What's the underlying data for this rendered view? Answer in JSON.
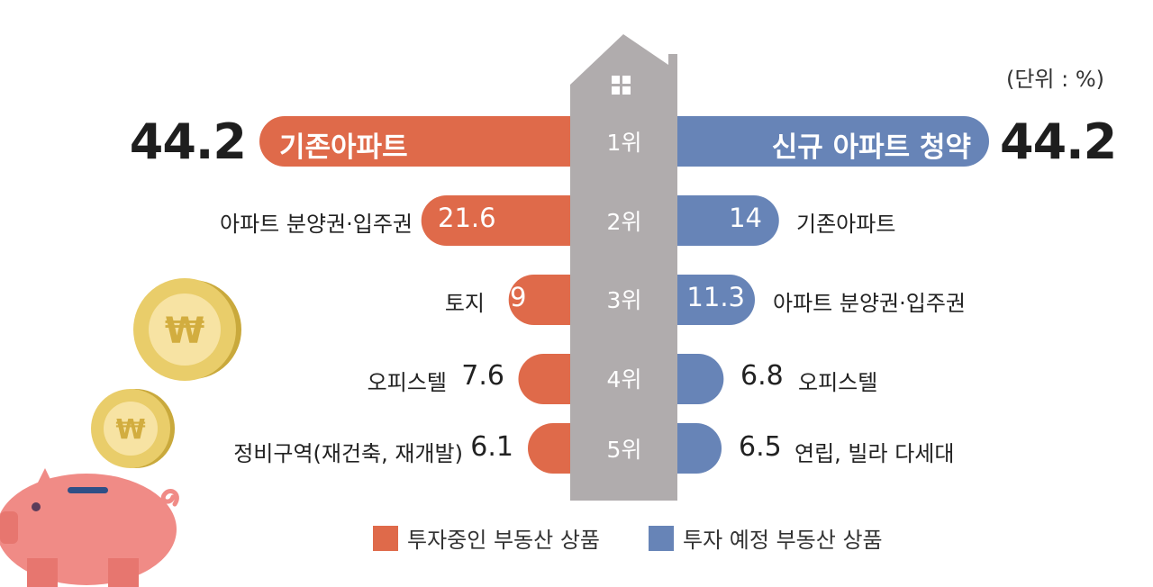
{
  "unit_label": "(단위 : %)",
  "colors": {
    "current": "#df6a4a",
    "planned": "#6784b7",
    "house": "#b0acad",
    "coin": "#e9cd6a",
    "pig": "#f08b86"
  },
  "chart_data": {
    "type": "bar",
    "orientation": "horizontal-butterfly",
    "categories": [
      "1위",
      "2위",
      "3위",
      "4위",
      "5위"
    ],
    "series": [
      {
        "name": "투자중인 부동산 상품",
        "items": [
          {
            "label": "기존아파트",
            "value": 44.2,
            "value_text": "44.2"
          },
          {
            "label": "아파트 분양권·입주권",
            "value": 21.6,
            "value_text": "21.6"
          },
          {
            "label": "토지",
            "value": 9,
            "value_text": "9"
          },
          {
            "label": "오피스텔",
            "value": 7.6,
            "value_text": "7.6"
          },
          {
            "label": "정비구역(재건축, 재개발)",
            "value": 6.1,
            "value_text": "6.1"
          }
        ]
      },
      {
        "name": "투자 예정 부동산 상품",
        "items": [
          {
            "label": "신규 아파트 청약",
            "value": 44.2,
            "value_text": "44.2"
          },
          {
            "label": "기존아파트",
            "value": 14,
            "value_text": "14"
          },
          {
            "label": "아파트 분양권·입주권",
            "value": 11.3,
            "value_text": "11.3"
          },
          {
            "label": "오피스텔",
            "value": 6.8,
            "value_text": "6.8"
          },
          {
            "label": "연립, 빌라 다세대",
            "value": 6.5,
            "value_text": "6.5"
          }
        ]
      }
    ],
    "legend": [
      "투자중인 부동산 상품",
      "투자 예정 부동산 상품"
    ],
    "legend_position": "bottom",
    "grid": false
  }
}
